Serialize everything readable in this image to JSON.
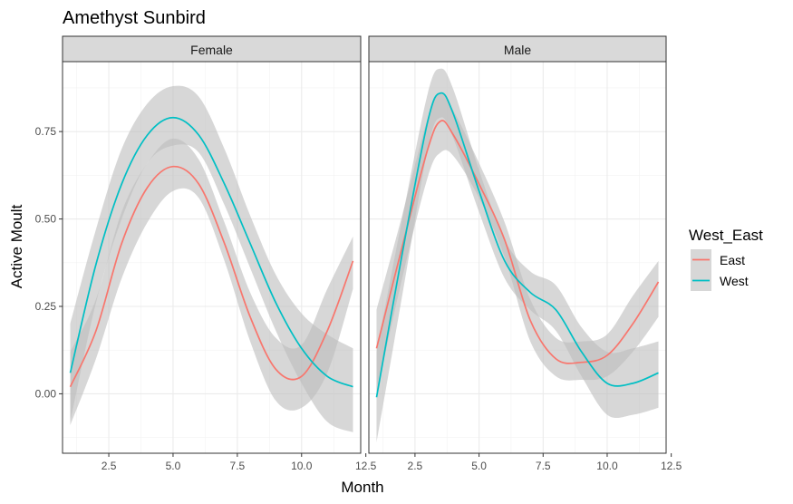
{
  "chart_data": {
    "type": "line",
    "title": "Amethyst Sunbird",
    "xlabel": "Month",
    "ylabel": "Active Moult",
    "xlim": [
      0.7,
      12.3
    ],
    "ylim": [
      -0.17,
      0.95
    ],
    "x_ticks": [
      2.5,
      5.0,
      7.5,
      10.0,
      12.5
    ],
    "x_tick_labels": [
      "2.5",
      "5.0",
      "7.5",
      "10.0",
      "12.5"
    ],
    "y_ticks": [
      0.0,
      0.25,
      0.5,
      0.75
    ],
    "y_tick_labels": [
      "0.00",
      "0.25",
      "0.50",
      "0.75"
    ],
    "grid": true,
    "legend": {
      "title": "West_East",
      "position": "right",
      "entries": [
        {
          "label": "East",
          "color": "#F8766D"
        },
        {
          "label": "West",
          "color": "#00BFC4"
        }
      ]
    },
    "band_color": "#bdbdbd",
    "panels": [
      {
        "label": "Female",
        "series": [
          {
            "name": "East",
            "color": "#F8766D",
            "x": [
              1,
              2,
              3,
              4,
              5,
              6,
              7,
              8,
              9,
              10,
              11,
              12
            ],
            "y": [
              0.02,
              0.18,
              0.43,
              0.59,
              0.65,
              0.6,
              0.43,
              0.22,
              0.07,
              0.05,
              0.18,
              0.38
            ],
            "lower": [
              -0.09,
              0.1,
              0.33,
              0.49,
              0.58,
              0.56,
              0.38,
              0.15,
              -0.02,
              -0.04,
              0.06,
              0.3
            ],
            "upper": [
              0.12,
              0.27,
              0.52,
              0.66,
              0.73,
              0.67,
              0.49,
              0.29,
              0.16,
              0.14,
              0.3,
              0.45
            ]
          },
          {
            "name": "West",
            "color": "#00BFC4",
            "x": [
              1,
              2,
              3,
              4,
              5,
              6,
              7,
              8,
              9,
              10,
              11,
              12
            ],
            "y": [
              0.06,
              0.37,
              0.6,
              0.74,
              0.79,
              0.74,
              0.6,
              0.43,
              0.26,
              0.13,
              0.05,
              0.02
            ],
            "lower": [
              -0.08,
              0.26,
              0.5,
              0.66,
              0.71,
              0.69,
              0.54,
              0.36,
              0.18,
              0.03,
              -0.08,
              -0.11
            ],
            "upper": [
              0.2,
              0.47,
              0.7,
              0.83,
              0.88,
              0.85,
              0.7,
              0.51,
              0.34,
              0.23,
              0.17,
              0.13
            ]
          }
        ]
      },
      {
        "label": "Male",
        "series": [
          {
            "name": "East",
            "color": "#F8766D",
            "x": [
              1,
              2,
              3,
              3.5,
              4,
              5,
              6,
              7,
              8,
              9,
              10,
              11,
              12
            ],
            "y": [
              0.13,
              0.42,
              0.7,
              0.78,
              0.74,
              0.6,
              0.44,
              0.21,
              0.1,
              0.09,
              0.11,
              0.2,
              0.32
            ],
            "lower": [
              0.0,
              0.33,
              0.62,
              0.69,
              0.68,
              0.56,
              0.39,
              0.15,
              0.05,
              0.04,
              0.05,
              0.12,
              0.22
            ],
            "upper": [
              0.24,
              0.51,
              0.79,
              0.86,
              0.81,
              0.66,
              0.49,
              0.27,
              0.16,
              0.15,
              0.17,
              0.28,
              0.38
            ]
          },
          {
            "name": "West",
            "color": "#00BFC4",
            "x": [
              1,
              2,
              3,
              3.5,
              4,
              5,
              6,
              7,
              8,
              9,
              10,
              11,
              12
            ],
            "y": [
              -0.01,
              0.4,
              0.78,
              0.86,
              0.8,
              0.58,
              0.38,
              0.29,
              0.24,
              0.12,
              0.03,
              0.03,
              0.06
            ],
            "lower": [
              -0.14,
              0.28,
              0.7,
              0.79,
              0.73,
              0.52,
              0.33,
              0.24,
              0.18,
              0.05,
              -0.06,
              -0.06,
              -0.04
            ],
            "upper": [
              0.12,
              0.5,
              0.86,
              0.93,
              0.87,
              0.64,
              0.44,
              0.35,
              0.31,
              0.19,
              0.12,
              0.13,
              0.15
            ]
          }
        ]
      }
    ]
  }
}
